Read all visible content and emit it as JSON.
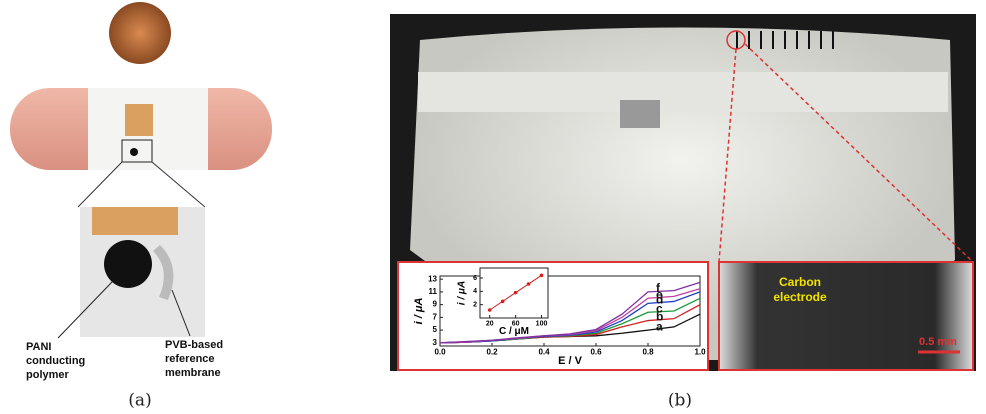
{
  "panel_a": {
    "caption": "(a)",
    "callout_left": [
      "PANI",
      "conducting",
      "polymer"
    ],
    "callout_right": [
      "PVB-based",
      "reference",
      "membrane"
    ]
  },
  "panel_b": {
    "caption": "(b)",
    "electrode_label": [
      "Carbon",
      "electrode"
    ],
    "scale_bar": "0.5 mm",
    "plot": {
      "type": "line",
      "x_label": "E / V",
      "y_label": "i / μA",
      "x": [
        0,
        0.1,
        0.2,
        0.3,
        0.4,
        0.5,
        0.6,
        0.7,
        0.8,
        0.9,
        1.0
      ],
      "xlim": [
        0,
        1
      ],
      "ylim": [
        2.5,
        13.5
      ],
      "xticks": [
        {
          "value": 0,
          "label": "0.0"
        },
        0.2,
        0.4,
        0.6,
        0.8,
        {
          "value": 1,
          "label": "1.0"
        }
      ],
      "yticks": [
        3,
        5,
        7,
        9,
        11,
        13
      ],
      "series": [
        {
          "name": "a",
          "color": "#111111",
          "values": [
            3,
            3.1,
            3.3,
            3.6,
            3.9,
            4.0,
            4.1,
            4.5,
            5.0,
            5.5,
            7.5
          ]
        },
        {
          "name": "b",
          "color": "#d62020",
          "values": [
            3,
            3.1,
            3.3,
            3.6,
            3.9,
            4.0,
            4.3,
            5.5,
            6.5,
            6.8,
            9
          ]
        },
        {
          "name": "c",
          "color": "#1a9a3a",
          "values": [
            3,
            3.1,
            3.3,
            3.6,
            4.0,
            4.1,
            4.5,
            6,
            7.8,
            8,
            10
          ]
        },
        {
          "name": "d",
          "color": "#2040c8",
          "values": [
            3,
            3.1,
            3.3,
            3.7,
            4.0,
            4.2,
            4.7,
            6.5,
            9.2,
            9.5,
            11
          ]
        },
        {
          "name": "e",
          "color": "#c040a0",
          "values": [
            3,
            3.1,
            3.4,
            3.7,
            4.1,
            4.3,
            4.9,
            7,
            10,
            10.3,
            11.5
          ]
        },
        {
          "name": "f",
          "color": "#8030a0",
          "values": [
            3,
            3.2,
            3.4,
            3.8,
            4.1,
            4.4,
            5.1,
            7.5,
            11,
            11.2,
            12.5
          ]
        }
      ],
      "inset": {
        "type": "scatter",
        "x_label": "C / μM",
        "y_label": "i / μA",
        "color": "#d62020",
        "x": [
          20,
          40,
          60,
          80,
          100
        ],
        "values": [
          1.2,
          2.5,
          3.8,
          5.1,
          6.4
        ],
        "xlim": [
          5,
          110
        ],
        "ylim": [
          0,
          7.5
        ],
        "xticks": [
          20,
          60,
          100
        ],
        "yticks": [
          2,
          4,
          6
        ]
      }
    }
  }
}
